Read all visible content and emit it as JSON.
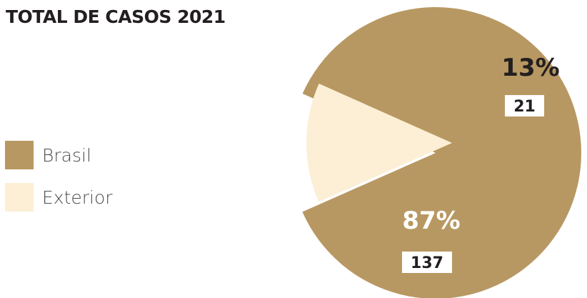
{
  "title": "TOTAL DE CASOS 2021",
  "chart_data": {
    "type": "pie",
    "title": "TOTAL DE CASOS 2021",
    "slices": [
      {
        "name": "Brasil",
        "value": 137,
        "percent_label": "87%",
        "count_label": "137",
        "color": "#b89862",
        "label_color": "#ffffff"
      },
      {
        "name": "Exterior",
        "value": 21,
        "percent_label": "13%",
        "count_label": "21",
        "color": "#fcefd6",
        "label_color": "#231f20"
      }
    ],
    "legend_position": "left"
  }
}
